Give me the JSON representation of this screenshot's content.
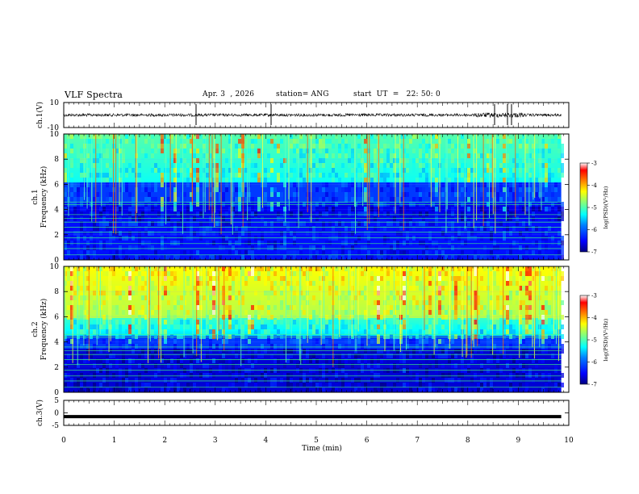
{
  "header": {
    "title": "VLF Spectra",
    "date": "Apr. 3  , 2026",
    "station": "station= ANG",
    "start": "start  UT  =   22: 50: 0"
  },
  "chart_data": [
    {
      "type": "line",
      "panel": "ch1-waveform",
      "ylabel": "ch.1(V)",
      "ylim": [
        -10,
        10
      ],
      "tick_labels": [
        "10",
        "-10"
      ],
      "xlim": [
        0,
        10
      ],
      "data_extent": [
        0,
        9.85
      ],
      "baseline": 0,
      "noise_amplitude": 1,
      "color": "#000000"
    },
    {
      "type": "heatmap",
      "panel": "ch1-spectrogram",
      "ylabel": "ch.1\nFrequency  (kHz)",
      "ylim": [
        0,
        10
      ],
      "y_ticks": [
        0,
        2,
        4,
        6,
        8,
        10
      ],
      "xlim": [
        0,
        10
      ],
      "data_extent": [
        0,
        9.85
      ],
      "colorbar": {
        "label": "log(PSD)(V²/Hz)",
        "range": [
          -7,
          -3
        ],
        "ticks": [
          "-3",
          "-4",
          "-5",
          "-6",
          "-7"
        ]
      },
      "colormap": [
        "#000080",
        "#0000ff",
        "#0080ff",
        "#00ffff",
        "#80ff80",
        "#ffff00",
        "#ff8000",
        "#ff0000",
        "#ffffff"
      ]
    },
    {
      "type": "heatmap",
      "panel": "ch2-spectrogram",
      "ylabel": "ch.2\nFrequency  (kHz)",
      "ylim": [
        0,
        10
      ],
      "y_ticks": [
        0,
        2,
        4,
        6,
        8,
        10
      ],
      "xlim": [
        0,
        10
      ],
      "data_extent": [
        0,
        9.85
      ],
      "colorbar": {
        "label": "log(PSD)(V²/Hz)",
        "range": [
          -7,
          -3
        ],
        "ticks": [
          "-3",
          "-4",
          "-5",
          "-6",
          "-7"
        ]
      }
    },
    {
      "type": "line",
      "panel": "ch3-waveform",
      "ylabel": "ch.3(V)",
      "ylim": [
        -5,
        5
      ],
      "tick_labels": [
        "5",
        "0",
        "-5"
      ],
      "xlim": [
        0,
        10
      ],
      "data_extent": [
        0,
        9.85
      ],
      "baseline": -1.5,
      "color": "#000000"
    }
  ],
  "xaxis": {
    "label": "Time  (min)",
    "ticks": [
      "0",
      "1",
      "2",
      "3",
      "4",
      "5",
      "6",
      "7",
      "8",
      "9",
      "10"
    ]
  }
}
